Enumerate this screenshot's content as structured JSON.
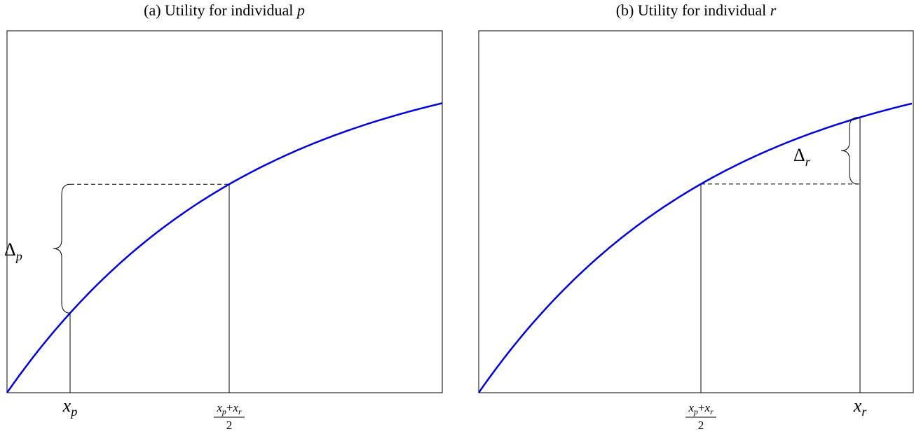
{
  "panels": [
    {
      "title": {
        "text": "(a) Utility for individual",
        "var": "p"
      },
      "x_low": {
        "base": "x",
        "sub": "p"
      },
      "x_mid": {
        "num_a": {
          "base": "x",
          "sub": "p"
        },
        "plus": "+",
        "num_b": {
          "base": "x",
          "sub": "r"
        },
        "den": "2"
      },
      "delta": {
        "base": "Δ",
        "sub": "p"
      }
    },
    {
      "title": {
        "text": "(b) Utility for individual",
        "var": "r"
      },
      "x_mid": {
        "num_a": {
          "base": "x",
          "sub": "p"
        },
        "plus": "+",
        "num_b": {
          "base": "x",
          "sub": "r"
        },
        "den": "2"
      },
      "x_high": {
        "base": "x",
        "sub": "r"
      },
      "delta": {
        "base": "Δ",
        "sub": "r"
      }
    }
  ]
}
